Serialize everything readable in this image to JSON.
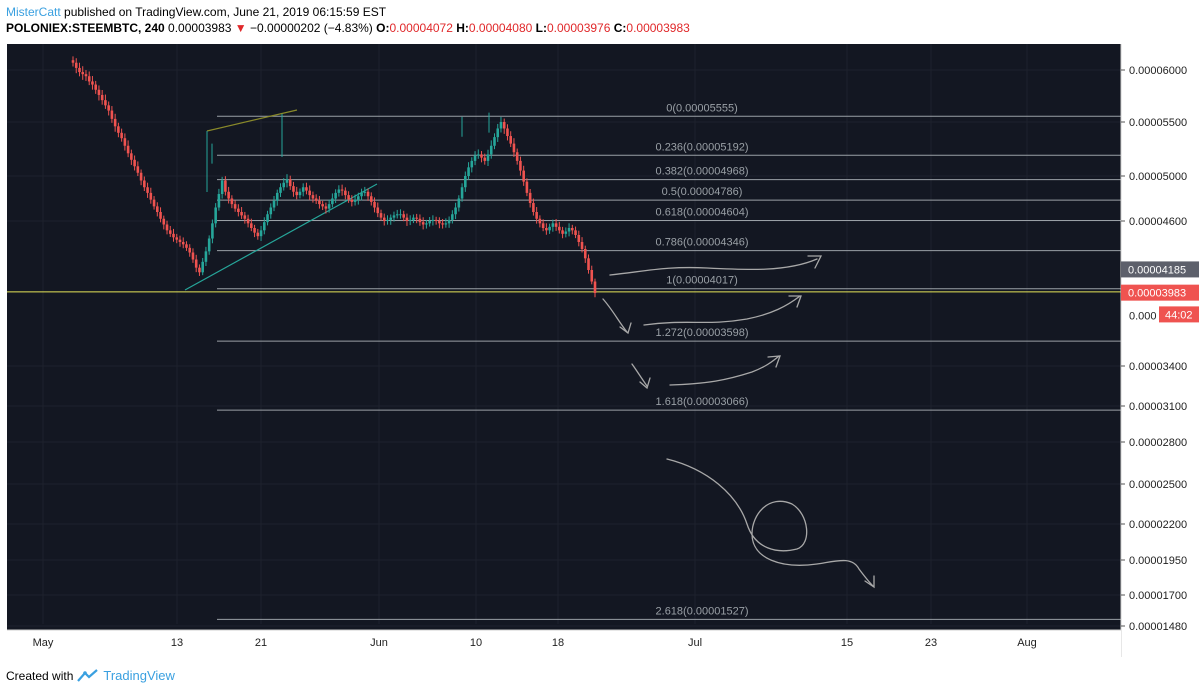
{
  "header": {
    "author": "MisterCatt",
    "published": "published on TradingView.com, June 21, 2019 06:15:59 EST",
    "symbol": "POLONIEX:STEEMBTC, 240",
    "last": "0.00003983",
    "change": "−0.00000202 (−4.83%)",
    "o_label": "O:",
    "o_value": "0.00004072",
    "h_label": "H:",
    "h_value": "0.00004080",
    "l_label": "L:",
    "l_value": "0.00003976",
    "c_label": "C:",
    "c_value": "0.00003983"
  },
  "footer": {
    "created_with": "Created with",
    "brand": "TradingView"
  },
  "colors": {
    "background": "#131722",
    "up": "#26a69a",
    "down": "#ef5350",
    "fib": "#9aa0a6",
    "support": "#e6e65a",
    "trend": "#26a69a",
    "channel": "#8a8a2a"
  },
  "chart_data": {
    "type": "candlestick",
    "x_ticks": [
      "May",
      "13",
      "21",
      "Jun",
      "10",
      "18",
      "Jul",
      "15",
      "23",
      "Aug"
    ],
    "y_ticks": [
      "0.00006000",
      "0.00005500",
      "0.00005000",
      "0.00004600",
      "0.00003400",
      "0.00003100",
      "0.00002800",
      "0.00002500",
      "0.00002200",
      "0.00001950",
      "0.00001700",
      "0.00001480"
    ],
    "ylim": [
      1.48e-05,
      6.15e-05
    ],
    "price_labels": [
      {
        "text": "0.00004185",
        "value": 4.185e-05,
        "color": "#5d606b"
      },
      {
        "text": "0.00003983",
        "value": 3.983e-05,
        "color": "#ef5350"
      },
      {
        "text": "44:02",
        "value": 3.81e-05,
        "color": "#ef5350"
      }
    ],
    "partial_tick": "0.000",
    "fib_levels": [
      {
        "ratio": "0",
        "value": 5.555e-05,
        "label": "0(0.00005555)"
      },
      {
        "ratio": "0.236",
        "value": 5.192e-05,
        "label": "0.236(0.00005192)"
      },
      {
        "ratio": "0.382",
        "value": 4.968e-05,
        "label": "0.382(0.00004968)"
      },
      {
        "ratio": "0.5",
        "value": 4.786e-05,
        "label": "0.5(0.00004786)"
      },
      {
        "ratio": "0.618",
        "value": 4.604e-05,
        "label": "0.618(0.00004604)"
      },
      {
        "ratio": "0.786",
        "value": 4.346e-05,
        "label": "0.786(0.00004346)"
      },
      {
        "ratio": "1",
        "value": 4.017e-05,
        "label": "1(0.00004017)"
      },
      {
        "ratio": "1.272",
        "value": 3.598e-05,
        "label": "1.272(0.00003598)"
      },
      {
        "ratio": "1.618",
        "value": 3.066e-05,
        "label": "1.618(0.00003066)"
      },
      {
        "ratio": "2.618",
        "value": 1.527e-05,
        "label": "2.618(0.00001527)"
      }
    ],
    "support_level": 3.99e-05,
    "series": [
      {
        "name": "price",
        "close": [
          6.07e-05,
          6.02e-05,
          5.98e-05,
          5.96e-05,
          5.94e-05,
          5.89e-05,
          5.86e-05,
          5.81e-05,
          5.76e-05,
          5.71e-05,
          5.66e-05,
          5.61e-05,
          5.53e-05,
          5.46e-05,
          5.4e-05,
          5.35e-05,
          5.28e-05,
          5.21e-05,
          5.15e-05,
          5.09e-05,
          5.03e-05,
          4.96e-05,
          4.9e-05,
          4.85e-05,
          4.79e-05,
          4.73e-05,
          4.68e-05,
          4.62e-05,
          4.57e-05,
          4.52e-05,
          4.49e-05,
          4.46e-05,
          4.44e-05,
          4.42e-05,
          4.4e-05,
          4.37e-05,
          4.33e-05,
          4.27e-05,
          4.2e-05,
          4.16e-05,
          4.25e-05,
          4.34e-05,
          4.45e-05,
          4.58e-05,
          4.72e-05,
          4.84e-05,
          4.96e-05,
          4.86e-05,
          4.8e-05,
          4.75e-05,
          4.71e-05,
          4.68e-05,
          4.65e-05,
          4.62e-05,
          4.58e-05,
          4.54e-05,
          4.5e-05,
          4.47e-05,
          4.52e-05,
          4.59e-05,
          4.66e-05,
          4.72e-05,
          4.78e-05,
          4.85e-05,
          4.9e-05,
          4.94e-05,
          4.97e-05,
          4.91e-05,
          4.86e-05,
          4.83e-05,
          4.86e-05,
          4.9e-05,
          4.87e-05,
          4.83e-05,
          4.8e-05,
          4.78e-05,
          4.75e-05,
          4.73e-05,
          4.71e-05,
          4.75e-05,
          4.8e-05,
          4.85e-05,
          4.88e-05,
          4.87e-05,
          4.83e-05,
          4.79e-05,
          4.77e-05,
          4.79e-05,
          4.82e-05,
          4.85e-05,
          4.86e-05,
          4.82e-05,
          4.77e-05,
          4.72e-05,
          4.67e-05,
          4.63e-05,
          4.6e-05,
          4.61e-05,
          4.63e-05,
          4.65e-05,
          4.66e-05,
          4.66e-05,
          4.63e-05,
          4.6e-05,
          4.61e-05,
          4.63e-05,
          4.62e-05,
          4.59e-05,
          4.57e-05,
          4.58e-05,
          4.6e-05,
          4.61e-05,
          4.6e-05,
          4.58e-05,
          4.57e-05,
          4.58e-05,
          4.61e-05,
          4.66e-05,
          4.72e-05,
          4.8e-05,
          4.9e-05,
          5e-05,
          5.08e-05,
          5.14e-05,
          5.19e-05,
          5.2e-05,
          5.17e-05,
          5.14e-05,
          5.2e-05,
          5.28e-05,
          5.36e-05,
          5.44e-05,
          5.5e-05,
          5.44e-05,
          5.37e-05,
          5.3e-05,
          5.22e-05,
          5.14e-05,
          5.05e-05,
          4.95e-05,
          4.85e-05,
          4.76e-05,
          4.68e-05,
          4.62e-05,
          4.58e-05,
          4.54e-05,
          4.52e-05,
          4.55e-05,
          4.58e-05,
          4.55e-05,
          4.52e-05,
          4.49e-05,
          4.51e-05,
          4.54e-05,
          4.52e-05,
          4.48e-05,
          4.42e-05,
          4.36e-05,
          4.28e-05,
          4.18e-05,
          4.08e-05,
          3.98e-05
        ]
      }
    ]
  },
  "annotations": {
    "arrows": [
      "path-up-1",
      "path-up-2",
      "path-up-3",
      "drop-1",
      "drop-2",
      "loop-down"
    ]
  }
}
